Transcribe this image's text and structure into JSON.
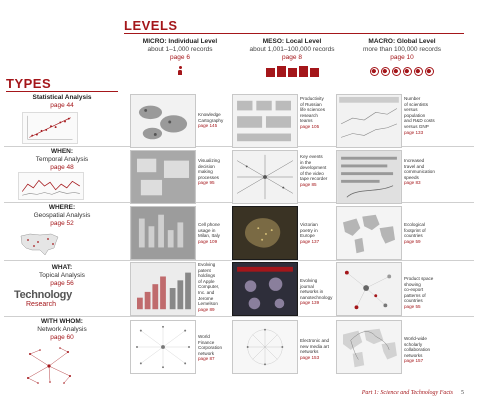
{
  "levels_heading": "LEVELS",
  "types_heading": "TYPES",
  "levels": [
    {
      "name": "MICRO: Individual Level",
      "records": "about 1–1,000 records",
      "page": "page 6",
      "icon": "person-icon"
    },
    {
      "name": "MESO: Local Level",
      "records": "about 1,001–100,000 records",
      "page": "page 8",
      "icon": "building-icon"
    },
    {
      "name": "MACRO: Global Level",
      "records": "more than 100,000 records",
      "page": "page 10",
      "icon": "globe-icon"
    }
  ],
  "types": [
    {
      "name": "Statistical Analysis",
      "page": "page 44"
    },
    {
      "name": "WHEN:",
      "sub": "Temporal Analysis",
      "page": "page 48"
    },
    {
      "name": "WHERE:",
      "sub": "Geospatial Analysis",
      "page": "page 52"
    },
    {
      "name": "WHAT:",
      "sub": "Topical Analysis",
      "page": "page 56"
    },
    {
      "name": "WITH WHOM:",
      "sub": "Network Analysis",
      "page": "page 60"
    }
  ],
  "word_cloud": {
    "big": "Technology",
    "small": "Research"
  },
  "captions": [
    [
      "Knowledge Cartography page 145",
      "Productivity of Russian life sciences research teams page 105",
      "Number of scientists versus population and R&D costs versus GNP page 133"
    ],
    [
      "Visualizing decision making processes page 95",
      "Key events in the development of the video tape recorder page 85",
      "Increased travel and communication speeds page 83"
    ],
    [
      "Cell phone usage in Milan, Italy page 109",
      "Victorian poetry in Europe page 137",
      "Ecological footprint of countries page 59"
    ],
    [
      "Evolving patent holdings of Apple Computer, Inc. and Jerome Lemelson page 89",
      "Evolving journal networks in nanotechnology page 139",
      "Product space showing co-export patterns of countries page 55"
    ],
    [
      "World Finance Corporation network page 87",
      "Electronic and new media art networks page 153",
      "World-wide scholarly collaboration networks page 157"
    ]
  ],
  "caption_lines": [
    [
      [
        "Knowledge",
        "Cartography"
      ],
      [
        "Productivity",
        "of Russian",
        "life sciences",
        "research",
        "teams"
      ],
      [
        "Number",
        "of scientists",
        "versus",
        "population",
        "and R&D costs",
        "versus GNP"
      ]
    ],
    [
      [
        "Visualizing",
        "decision",
        "making",
        "processes"
      ],
      [
        "Key events",
        "in the",
        "development",
        "of the video",
        "tape recorder"
      ],
      [
        "Increased",
        "travel and",
        "communication",
        "speeds"
      ]
    ],
    [
      [
        "Cell phone",
        "usage in",
        "Milan, Italy"
      ],
      [
        "Victorian",
        "poetry in",
        "Europe"
      ],
      [
        "Ecological",
        "footprint of",
        "countries"
      ]
    ],
    [
      [
        "Evolving",
        "patent",
        "holdings",
        "of Apple",
        "Computer,",
        "Inc. and",
        "Jerome",
        "Lemelson"
      ],
      [
        "Evolving",
        "journal",
        "networks in",
        "nanotechnology"
      ],
      [
        "Product space",
        "showing",
        "co-export",
        "patterns of",
        "countries"
      ]
    ],
    [
      [
        "World",
        "Finance",
        "Corporation",
        "network"
      ],
      [
        "Electronic and",
        "new media art",
        "networks"
      ],
      [
        "World-wide",
        "scholarly",
        "collaboration",
        "networks"
      ]
    ]
  ],
  "caption_pages": [
    [
      "page 145",
      "page 105",
      "page 133"
    ],
    [
      "page 95",
      "page 85",
      "page 83"
    ],
    [
      "page 109",
      "page 137",
      "page 59"
    ],
    [
      "page 89",
      "page 139",
      "page 55"
    ],
    [
      "page 87",
      "page 153",
      "page 157"
    ]
  ],
  "footer": {
    "text": "Part 1: Science and Technology Facts",
    "page_number": "5"
  },
  "colors": {
    "accent": "#a4161a",
    "text": "#333333"
  }
}
